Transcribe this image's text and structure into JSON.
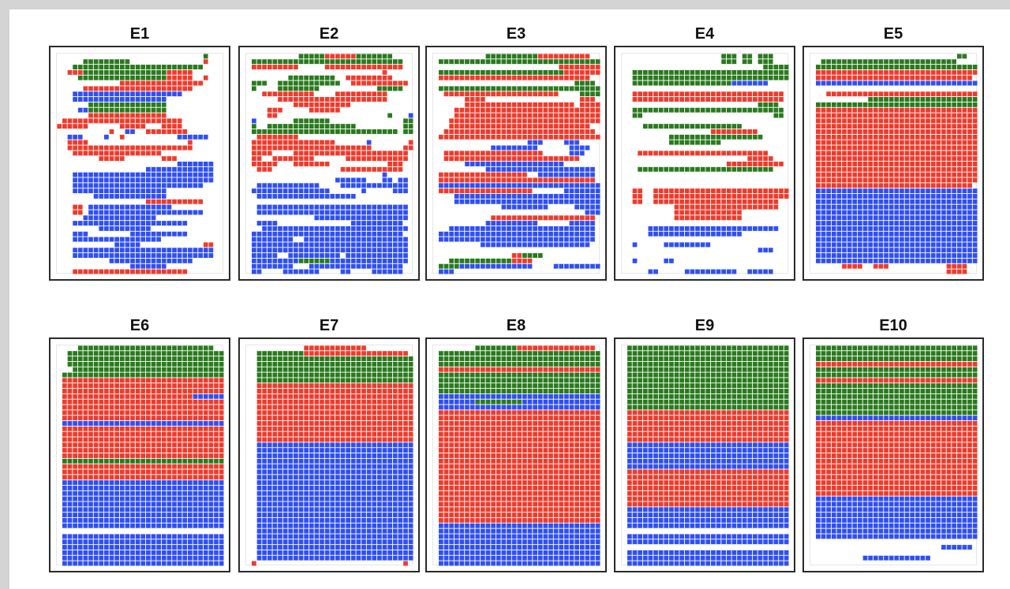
{
  "chart_data": {
    "type": "heatmap",
    "description_note": "",
    "legend": [],
    "colors": {
      "a": "#2a7a1e",
      "b": "#ef3b2c",
      "c": "#2f4ff5",
      "empty": "#ffffff"
    },
    "grid": {
      "cols": 32,
      "rows": 41
    },
    "panels": [
      {
        "title": "E1",
        "rows": [
          "............................A...",
          ".....AAAAAAAAA..............B...",
          "...AAAAAAAAAAAAAAAAAAAAAAAAA....",
          "..BBBAAAAAAAAAAAAAAAABBBBB......",
          "....AAAAAAAAAAAAAAAAABBBBB..B...",
          "............BBBBBBBBBBBBBBBB....",
          ".....BBBBBBBBBBBBBBBBBBBBB......",
          "...CCCCCCCCCCCCCCCCCCCCC........",
          "...CCCCCCCCCCCCCCCCCC...........",
          "......AAAAAAAAAAAAAAA...........",
          "....CCAAAAAAAAAAAAAAA...........",
          "......BBBBBBBBBBBBBBB...........",
          ".BBBBBBBBBBBBBBBBBBBBBBB........",
          "BBBBBB......BBBBB...BBBB........",
          "..........B..CC..BBBBBBBB.......",
          "..CCC....C..B..........CCCCCC...",
          "..BBBB...................B......",
          "..BBBBBBBBBBBBBBBBBBBBBBBB......",
          "...BBBBBBBBBBBBBBBBB............",
          "........BBBBB.......BBB.........",
          ".......................CCCCCCC..",
          ".................CCCCCCCCCCCCC..",
          "...CCCCCCCCCCCCCCCCCCCCCCCCCCC..",
          "...CCCCCCCCCCCCCCCCCCCCCCCCCCC..",
          "...CCCCCCCCCCCCCCCCCCCCCCCCC....",
          "...CCCCCCCCCCCCCCCCCC...........",
          ".......CCCCCCCCCCCCCC...........",
          ".................BBBBBBBBBBB....",
          "...BB.CCCCCCCCCCCCCCCC..........",
          "...BB.CCCCCCCCCCCCCCCCCCCCCC....",
          ".....CCCCCCCCCCCCCC.............",
          "...CCCCCCCCCCCCCCCCCCCCCC.......",
          "........CCCCCCCCCC..............",
          "...CCC........CCCCCCCCCCC.......",
          "...CCCCCCCCCCCCCCCCC............",
          "...........CCCCC............BB..",
          "...CCCCCCCCCCCCCCCCCCCCCCCCCCC..",
          "...CCCCCCCCCCCCCCCCCCCCCCCCCCC..",
          "..........CCCCCCCCCCCCCCCC......",
          "..............CCCCCCC...........",
          "...BBBBBBBBBBBBBBBBBBBBBB......."
        ]
      },
      {
        "title": "E2",
        "rows": [
          "..........AAAAABBBBBBAAAAAAA....",
          ".AAAAAAAAAAAAAAAAAAAAAAAAAAAAA..",
          ".BBBBBBBBB.....BBBBBBBBBBBBBBB..",
          "..........................B.....",
          "........AAAAAAAAA..BBBBBBBBB....",
          ".AAA..AAAAAAAAAAAA..BBBBBBBBBBB.",
          ".A....AAAAAAAA...........AAAAA..",
          "...BBBBBBBBBB....BBBBBBBBBB.....",
          "......BBBBBBBBBBBBBBBBBBBBB.....",
          ".........BBBBBBBBBBB............",
          "....BBB.....BBBBBB..............",
          "....BB.....................A...C",
          ".C.......AAAAAAA..............AA",
          ".A..AAAAAAAAAAAAAAAAA.........AA",
          ".AAAAAAAAAAAAAAAAAAAAAAAAAAAA.AA",
          "..BBBBBBBB......................",
          ".BBBBBBBBBBBBBBBB......C.......B",
          ".BBBBBBBBBBBBBBBBBBBBBBB......BB",
          ".BBBB....BBBBBBBBBBBBBBBBBBBBBB.",
          ".BB..BBBBBBBB......BBBBBBBBBBBB.",
          ".BBBBB...BBBBBBB...........BBB..",
          "..BBB.............BBBBBBBBBBBB..",
          "..........................C.....",
          ".................CCCCCC...CC.CC.",
          "..CCCCCCCCCCCC....CCCCCCCCCCCCC.",
          ".CCCCCCCCCCCCCCC......C.....CCC.",
          "..CCCCCCCCCCCCCCCCCCC...........",
          "................................",
          "..CCCCCCCCCCCCCCCCCCCCCCCCCCCCC.",
          "..CCCCCCCCCCCCCCCCCCCCCCCCCCCCC.",
          ".............CCCCCCCCCCCCCCCCCC.",
          "..CCCC..............CCCCCCCCCC..",
          "...CCCCCCCCCCCCCCCCCCCCCCCCCCCC.",
          ".CCCCCCCCCCCCCCCCCCCCCCCCCCCCC..",
          ".CCCCCCCC..CCCCCCCCCCCCCCCCCCCC.",
          ".CCCCCCCCCCCCCCCCCCCCCCCCCCCCCC.",
          ".CCCCCCCCCCCCCCCCCCCCCCCCCCCCCC.",
          ".CCCCC..CCCCCCCCCC.CCCCCCCCCCCC.",
          ".CCCCCCCCCAAAAAACCCCCCCCCCCCCCC.",
          ".CCCCCCCC...CCCCCCCCCCCCCCCCCC..",
          ".CC....CCCCCCC....CC....CCCCCC.."
        ]
      },
      {
        "title": "E3",
        "rows": [
          "..........AAAAAAAAAABBBBBBBBBB..",
          ".AAAAAAAAAAAAAAAAAAAAAAAAAAAAAAA",
          "........................BBBBBBBB",
          ".AAAAAAAAAAAAAAAAAAAAAAAABBBBBBB",
          ".BBBBBBBBBBBBBBBBBBBBBBBBBBBBB..",
          "...........................AAAA.",
          ".AAAAAAAAAAAAAAAAAAAAAAAAAAAAAAA",
          "..BBBBBBBBBBBBBBBBBBBBBB....AAAA",
          "......BBBB..................BBB.",
          "......BBBBBBBBBBBBBBBBBBBBB.BBBB",
          "....BBBBBBBBBBBBBBBBBBBBBBBBBBBB",
          "....BBBBBBBBBBBBBBBBBBBBBBBBBBBB",
          "...BBBBBBBBBBBBBBBBBBBBBBBBBBBBB",
          "...BBBBBBBBBBBBBBBBBBBBBBBBBBB..",
          "..BBBBBBBBBBBBBBBBBBBBBBBBBBBBB.",
          ".BBBBBBBBBBBBBBBBBBBBBBBBBBBBBBB",
          "..................CCC....CCC....",
          "...........CCCCCCCCC......CCCC..",
          "..BBBBBBBBBBBBBBBBBBB.....CCC...",
          "..BBBBBBBBBBBBBBBBBBBBBBBBBB....",
          "......CCCCCCCCCCCCCCCCCCC.......",
          "..........CCCCCCCCCCCCCCCCCCCCC.",
          ".BBBBBBBBBBBBBBBBB..CCCCCCCCCCC.",
          ".BBBBBBBBBBBBBBBBBBBBBBBBBBBBBB.",
          ".CCCCCCCCCCCCCCCCCCCCCCCCCCCCCCC",
          ".BBBBBBBBBBBBBBBBBB......CCCCCCC",
          "....CCCCCCCCCCCCCCCCCCCCCCCCCCCC",
          "....CCCCCCCCCCCCCCCCCCCCCCCCCCCC",
          ".............CCCCCCCCC.....CCCCC",
          ".............................CCC",
          "...........BBBBBBBBBBBBBBBBBBBB.",
          "..........CCCCCCCCCC......CCCCC.",
          "...CCCCCCCCCCCCCCCCCCCCCCCCCCCC.",
          ".CCCCCCCCCCCCCCCCCCCCCCCCCCCCCC.",
          ".CCCCCCCCCCCCCCCCCCCCCCCCCCCCCC.",
          ".........CCCCCCCCCCCCCCCCCCCCC..",
          "................................",
          "...............BBAAAA...........",
          "...AAAAAAAAAAAABBBB.............",
          ".AAAACCCCCCCCCCCCCC....CCCCCCCCC",
          ".CCC............................"
        ]
      },
      {
        "title": "E4",
        "rows": [
          "...................AAA.AA.AAA...",
          "...................AAA.AA.AAA...",
          "...........................AAAAA",
          "..AAAAAAAAAAAAAAAAAAAAAAAAAAAAAA",
          "..AAAAAAAAAAAAAAAAAAAAAAAAAAAAAA",
          "..AAAAAAAAAAAAAAAAAAACCCCCCC....",
          "................................",
          "..BBBBBBBBBBBBBBBBBBBBBBBBBBBBB.",
          "..BBBBBBBBBBBBBBBBBBBBBBBBBBBBB.",
          "..........................AAAA..",
          "..AAAAAAAAAAAAAAAAAAAAAAAAAAAAA.",
          "..AA.........................AA.",
          "................................",
          "....AAAAAAAAAAAAAAAAAAA.........",
          ".................BBBBBBBBB......",
          ".........AAAAAAAAAAAAAAAAAA.....",
          ".........AAAAAAAAAA.............",
          "................................",
          "...BBBBBBBBBBBBBBBBBBBBBBBBB....",
          "........................BBBBB...",
          "....................BBBBBBBBBBB.",
          "...AAAAAAAAAAAAAAAAAAAAAAAAAA...",
          "................................",
          "................................",
          "................................",
          "..BB..BBBBBBBBBBBBBBBBBBBBBBBBBB",
          "..BB..BBBBBBBBBBBBBBBBBBBBBBBBBB",
          "..BB..BBBBBBBBBBBBBBBBBBBBBBBB..",
          "..........BBBBBBBBBBBBBBBBBBBB..",
          "..........BBBBBBBBBBBBB.........",
          "..........BBBBBBBBBBBBB.........",
          "................................",
          ".....CCCCCCCCCCCCCCCCCCCCCCCCC..",
          ".....CCCCCCCCCCCCCCCCCC.........",
          "................................",
          "..C.....CCCCCCCCC...............",
          "..........................CCC...",
          "................................",
          "..C.....CC......................",
          "................................",
          ".....CC.....CCCCCCCCCC..CCCCC..."
        ]
      },
      {
        "title": "E5",
        "rows": [
          "............................AA..",
          "..AAAAAAAAAAAAAAAAAAAAAAAAAA....",
          ".AAAAAAAAAAAAAAAAAAAAAAAAAAAAAAA",
          ".BBBBBBBBBBBBBBBBBBBBBBBBBBBBBBB",
          ".BBBBBBBBBBBBBBBBBBBBBBBBBBBBBB.",
          ".CCCCCCCCCCCCCCCCCCCCCCCCCCCCCCC",
          "................................",
          "...BBBBBBBBBBBBBBBBBBBBBBBBBBBBB",
          "...........AAAAAAAAAAAAAAAAAAAAA",
          ".AAAAAAAAAAAAAAAAAAAAAAAAAAAAAAA",
          ".BBBBBBBBBBBBBBBBBBBBBBBBBBBBBBB",
          ".BBBBBBBBBBBBBBBBBBBBBBBBBBBBBBB",
          ".BBBBBBBBBBBBBBBBBBBBBBBBBBBBBBB",
          ".BBBBBBBBBBBBBBBBBBBBBBBBBBBBBBB",
          ".BBBBBBBBBBBBBBBBBBBBBBBBBBBBBBB",
          ".BBBBBBBBBBBBBBBBBBBBBBBBBBBBBBB",
          ".BBBBBBBBBBBBBBBBBBBBBBBBBBBBBBB",
          ".BBBBBBBBBBBBBBBBBBBBBBBBBBBBBBB",
          ".BBBBBBBBBBBBBBBBBBBBBBBBBBBBBBB",
          ".BBBBBBBBBBBBBBBBBBBBBBBBBBBBBBB",
          ".BBBBBBBBBBBBBBBBBBBBBBBBBBBBBBB",
          ".BBBBBBBBBBBBBBBBBBBBBBBBBBBBBBB",
          ".BBBBBBBBBBBBBBBBBBBBBBBBBBBBBBB",
          ".BBBBBBBBBBBBBBBBBBBBBBBBBBBBBBB",
          ".BBBBBBBBBBBBBBBBBBBBBBBBBBBBBB.",
          ".CCCCCCCCCCCCCCCCCCCCCCCCCCCCCCC",
          ".CCCCCCCCCCCCCCCCCCCCCCCCCCCCCCC",
          ".CCCCCCCCCCCCCCCCCCCCCCCCCCCCCCC",
          ".CCCCCCCCCCCCCCCCCCCCCCCCCCCCCCC",
          ".CCCCCCCCCCCCCCCCCCCCCCCCCCCCCCC",
          ".CCCCCCCCCCCCCCCCCCCCCCCCCCCCCCC",
          ".CCCCCCCCCCCCCCCCCCCCCCCCCCCCCCC",
          ".CCCCCCCCCCCCCCCCCCCCCCCCCCCCCCC",
          ".CCCCCCCCCCCCCCCCCCCCCCCCCCCCCCC",
          ".CCCCCCCCCCCCCCCCCCCCCCCCCCCCCCC",
          ".CCCCCCCCCCCCCCCCCCCCCCCCCCCCCCC",
          ".CCCCCCCCCCCCCCCCCCCCCCCCCCCCCCC",
          ".CCCCCCCCCCCCCCCCCCCCCCCCCCCCCCC",
          ".CCCCCCCCCCCCCCCCCCCCCCCCCCCCCCC",
          "......BBBB..BBB...........BBBB..",
          "..........................BBBB.."
        ]
      },
      {
        "title": "E6",
        "rows": [
          "....AAAAAAAAAAAAAAAAAAAAAAAAAA..",
          "..AAAAAAAAAAAAAAAAAAAAAAAAAAAAAA",
          "..AAAAAAAAAAAAAAAAAAAAAAAAAAAAAA",
          "..AAAAAAAAAAAAAAAAAAAAAAAAAAAAAA",
          "...AAAAAAAAAAAAAAAAAAAAAAAAAAAAA",
          ".AAAAAAAAAAAAAAAAAAAAAAAAAAAAAAA",
          ".BBBBBBBBBBBBBBBBBBBBBBBBBBBBBBB",
          ".BBBBBBBBBBBBBBBBBBBBBBBBBBBBBBB",
          ".BBBBBBBBBBBBBBBBBBBBBBBBBBBBBBB",
          ".BBBBBBBBBBBBBBBBBBBBBBBBBCCCCCC",
          ".BBBBBBBBBBBBBBBBBBBBBBBBBBBBBBB",
          ".BBBBBBBBBBBBBBBBBBBBBBBBBBBBBBB",
          ".BBBBBBBBBBBBBBBBBBBBBBBBBBBBBBB",
          ".BBBBBBBBBBBBBBBBBBBBBBBBBBBBBBB",
          ".CCCCCCCCCCCCCCCCCCCCCCCCCCCCCCC",
          ".BBBBBBBBBBBBBBBBBBBBBBBBBBBBBBB",
          ".BBBBBBBBBBBBBBBBBBBBBBBBBBBBBBB",
          ".BBBBBBBBBBBBBBBBBBBBBBBBBBBBBBB",
          ".BBBBBBBBBBBBBBBBBBBBBBBBBBBBBBB",
          ".BBBBBBBBBBBBBBBBBBBBBBBBBBBBBBB",
          ".BBBBBBBBBBBBBBBBBBBBBBBBBBBBBBB",
          ".AAAAAAAAAAAAAAAAAAAAAAAAAAAAAAA",
          ".BBBBBBBBBBBBBBBBBBBBBBBBBBBBBBB",
          ".BBBBBBBBBBBBBBBBBBBBBBBBBBBBBBB",
          ".BBBBBBBBBBBBBBBBBBBBBBBBBBBBBBB",
          ".CCCCCCCCCCCCCCCCCCCCCCCCCCCCCCC",
          ".CCCCCCCCCCCCCCCCCCCCCCCCCCCCCCC",
          ".CCCCCCCCCCCCCCCCCCCCCCCCCCCCCCC",
          ".CCCCCCCCCCCCCCCCCCCCCCCCCCCCCCC",
          ".CCCCCCCCCCCCCCCCCCCCCCCCCCCCCCC",
          ".CCCCCCCCCCCCCCCCCCCCCCCCCCCCCCC",
          ".CCCCCCCCCCCCCCCCCCCCCCCCCCCCCCC",
          ".CCCCCCCCCCCCCCCCCCCCCCCCCCCCCCC",
          ".CCCCCCCCCCCCCCCCCCCCCCCCCCCCCCC",
          "................................",
          ".CCCCCCCCCCCCCCCCCCCCCCCCCCCCCCC",
          ".CCCCCCCCCCCCCCCCCCCCCCCCCCCCCCC",
          ".CCCCCCCCCCCCCCCCCCCCCCCCCCCCCCC",
          ".CCCCCCCCCCCCCCCCCCCCCCCCCCCCCCC",
          ".CCCCCCCCCCCCCCCCCCCCCCCCCCCCCCC",
          ".CCCCCCCCCCCCCCCCCCCCCCCCCCCCCCC"
        ]
      },
      {
        "title": "E7",
        "rows": [
          "...........BBBBBBBBBBBB.........",
          "..AAAAAAAAABBBBBBBBBBBBBBBBBBBB.",
          "..AAAAAAAAAAAAAAAAAAAAAAAAAAAAAA",
          "..AAAAAAAAAAAAAAAAAAAAAAAAAAAAAA",
          "..AAAAAAAAAAAAAAAAAAAAAAAAAAAAAA",
          "..AAAAAAAAAAAAAAAAAAAAAAAAAAAAAA",
          "..AAAAAAAAAAAAAAAAAAAAAAAAAAAAAA",
          "..BBBBBBBBBBBBBBBBBBBBBBBBBBBBBB",
          "..BBBBBBBBBBBBBBBBBBBBBBBBBBBBBB",
          "..BBBBBBBBBBBBBBBBBBBBBBBBBBBBBB",
          "..BBBBBBBBBBBBBBBBBBBBBBBBBBBBBB",
          "..BBBBBBBBBBBBBBBBBBBBBBBBBBBBBB",
          "..BBBBBBBBBBBBBBBBBBBBBBBBBBBBBB",
          "..BBBBBBBBBBBBBBBBBBBBBBBBBBBBBB",
          "..BBBBBBBBBBBBBBBBBBBBBBBBBBBBBB",
          "..BBBBBBBBBBBBBBBBBBBBBBBBBBBBBB",
          "..BBBBBBBBBBBBBBBBBBBBBBBBBBBBBB",
          "..BBBBBBBBBBBBBBBBBBBBBBBBBBBBBB",
          "..CCCCCCCCCCCCCCCCCCCCCCCCCCCCCC",
          "..CCCCCCCCCCCCCCCCCCCCCCCCCCCCCC",
          "..CCCCCCCCCCCCCCCCCCCCCCCCCCCCCC",
          "..CCCCCCCCCCCCCCCCCCCCCCCCCCCCCC",
          "..CCCCCCCCCCCCCCCCCCCCCCCCCCCCCC",
          "..CCCCCCCCCCCCCCCCCCCCCCCCCCCCCC",
          "..CCCCCCCCCCCCCCCCCCCCCCCCCCCCCC",
          "..CCCCCCCCCCCCCCCCCCCCCCCCCCCCCC",
          "..CCCCCCCCCCCCCCCCCCCCCCCCCCCCCC",
          "..CCCCCCCCCCCCCCCCCCCCCCCCCCCCCC",
          "..CCCCCCCCCCCCCCCCCCCCCCCCCCCCCC",
          "..CCCCCCCCCCCCCCCCCCCCCCCCCCCCCC",
          "..CCCCCCCCCCCCCCCCCCCCCCCCCCCCCC",
          "..CCCCCCCCCCCCCCCCCCCCCCCCCCCCCC",
          "..CCCCCCCCCCCCCCCCCCCCCCCCCCCCCC",
          "..CCCCCCCCCCCCCCCCCCCCCCCCCCCCCC",
          "..CCCCCCCCCCCCCCCCCCCCCCCCCCCCCC",
          "..CCCCCCCCCCCCCCCCCCCCCCCCCCCCCC",
          "..CCCCCCCCCCCCCCCCCCCCCCCCCCCCCC",
          "..CCCCCCCCCCCCCCCCCCCCCCCCCCCCCC",
          "..CCCCCCCCCCCCCCCCCCCCCCCCCCCCCC",
          "..CCCCCCCCCCCCCCCCCCCCCCCCCCCCCC",
          ".B............................B."
        ]
      },
      {
        "title": "E8",
        "rows": [
          "........AAAAAAAABBBBBBBBBBBBBBB.",
          ".AAAAAAAAAAAAAAAAAAAAAAAAAAAAAAA",
          ".AAAAAAAAAAAAAAAAAAAAAAAAAAAAAAA",
          ".AAAAAAAAAAAAAAAAAAAAAAAAAAAAAAA",
          ".BBBBBBBBBBBBBBBBBBBBBBBBBBBBBBB",
          ".AAAAAAAAAAAAAAAAAAAAAAAAAAAAAAA",
          ".AAAAAAAAAAAAAAAAAAAAAAAAAAAAAAA",
          ".AAAAAAAAAAAAAAAAAAAAAAAAAAAAAAA",
          ".AAAAAAAAAAAAAAAAAAAAAAAAAAAAAAA",
          ".CCCCCCCCCCCCCCCCCCCCCCCCCCCCCCC",
          ".CCCCCCCAAAAAAAAACCCCCCCCCCCCCCC",
          ".CCCCCCCCCCCCCCCCCCCCCCCCCCCCCCC",
          ".BBBBBBBBBBBBBBBBBBBBBBBBBBBBBBB",
          ".BBBBBBBBBBBBBBBBBBBBBBBBBBBBBBB",
          ".BBBBBBBBBBBBBBBBBBBBBBBBBBBBBBB",
          ".BBBBBBBBBBBBBBBBBBBBBBBBBBBBBBB",
          ".BBBBBBBBBBBBBBBBBBBBBBBBBBBBBBB",
          ".BBBBBBBBBBBBBBBBBBBBBBBBBBBBBBB",
          ".BBBBBBBBBBBBBBBBBBBBBBBBBBBBBBB",
          ".BBBBBBBBBBBBBBBBBBBBBBBBBBBBBBB",
          ".BBBBBBBBBBBBBBBBBBBBBBBBBBBBBBB",
          ".BBBBBBBBBBBBBBBBBBBBBBBBBBBBBBB",
          ".BBBBBBBBBBBBBBBBBBBBBBBBBBBBBBB",
          ".BBBBBBBBBBBBBBBBBBBBBBBBBBBBBBB",
          ".BBBBBBBBBBBBBBBBBBBBBBBBBBBBBBB",
          ".BBBBBBBBBBBBBBBBBBBBBBBBBBBBBBB",
          ".BBBBBBBBBBBBBBBBBBBBBBBBBBBBBBB",
          ".BBBBBBBBBBBBBBBBBBBBBBBBBBBBBBB",
          ".BBBBBBBBBBBBBBBBBBBBBBBBBBBBBBB",
          ".BBBBBBBBBBBBBBBBBBBBBBBBBBBBBBB",
          ".BBBBBBBBBBBBBBBBBBBBBBBBBBBBBBB",
          ".BBBBBBBBBBBBBBBBBBBBBBBBBBBBBBB",
          ".BBBBBBBBBBBBBBBBBBBBBBBBBBBBBBB",
          ".CCCCCCCCCCCCCCCCCCCCCCCCCCCCCCC",
          ".CCCCCCCCCCCCCCCCCCCCCCCCCCCCCCC",
          ".CCCCCCCCCCCCCCCCCCCCCCCCCCCCCCC",
          ".CCCCCCCCCCCCCCCCCCCCCCCCCCCCCCC",
          ".CCCCCCCCCCCCCCCCCCCCCCCCCCCCCCC",
          ".CCCCCCCCCCCCCCCCCCCCCCCCCCCCCCC",
          ".CCCCCCCCCCCCCCCCCCCCCCCCCCCCCCC",
          ".CCCCCCCCCCCCCCCCCCCCCCCCCCCCCCC"
        ]
      },
      {
        "title": "E9",
        "rows": [
          ".AAAAAAAAAAAAAAAAAAAAAAAAAAAAAAA",
          ".AAAAAAAAAAAAAAAAAAAAAAAAAAAAAAA",
          ".AAAAAAAAAAAAAAAAAAAAAAAAAAAAAAA",
          ".AAAAAAAAAAAAAAAAAAAAAAAAAAAAAAA",
          ".AAAAAAAAAAAAAAAAAAAAAAAAAAAAAAA",
          ".AAAAAAAAAAAAAAAAAAAAAAAAAAAAAAA",
          ".AAAAAAAAAAAAAAAAAAAAAAAAAAAAAAA",
          ".AAAAAAAAAAAAAAAAAAAAAAAAAAAAAAA",
          ".AAAAAAAAAAAAAAAAAAAAAAAAAAAAAAA",
          ".AAAAAAAAAAAAAAAAAAAAAAAAAAAAAAA",
          ".AAAAAAAAAAAAAAAAAAAAAAAAAAAAAAA",
          ".AAAAAAAAAAAAAAAAAAAAAAAAAAAAAAA",
          ".BBBBBBBBBBBBBBBBBBBBBBBBBBBBBBB",
          ".BBBBBBBBBBBBBBBBBBBBBBBBBBBBBBB",
          ".BBBBBBBBBBBBBBBBBBBBBBBBBBBBBBB",
          ".BBBBBBBBBBBBBBBBBBBBBBBBBBBBBBB",
          ".BBBBBBBBBBBBBBBBBBBBBBBBBBBBBBB",
          ".BBBBBBBBBBBBBBBBBBBBBBBBBBBBBBB",
          ".CCCCCCCCCCCCCCCCCCCCCCCCCCCCCCC",
          ".CCCCCCCCCCCCCCCCCCCCCCCCCCCCCCC",
          ".CCCCCCCCCCCCCCCCCCCCCCCCCCCCCCC",
          ".CCCCCCCCCCCCCCCCCCCCCCCCCCCCCCC",
          ".CCCCCCCCCCCCCCCCCCCCCCCCCCCCCCC",
          ".BBBBBBBBBBBBBBBBBBBBBBBBBBBBBBB",
          ".BBBBBBBBBBBBBBBBBBBBBBBBBBBBBBB",
          ".BBBBBBBBBBBBBBBBBBBBBBBBBBBBBBB",
          ".BBBBBBBBBBBBBBBBBBBBBBBBBBBBBBB",
          ".BBBBBBBBBBBBBBBBBBBBBBBBBBBBBBB",
          ".BBBBBBBBBBBBBBBBBBBBBBBBBBBBBBB",
          ".BBBBBBBBBBBBBBBBBBBBBBBBBBBBBBB",
          ".CCCCCCCCCCCCCCCCCCCCCCCCCCCCCCC",
          ".CCCCCCCCCCCCCCCCCCCCCCCCCCCCCCC",
          ".CCCCCCCCCCCCCCCCCCCCCCCCCCCCCCC",
          ".CCCCCCCCCCCCCCCCCCCCCCCCCCCCCCC",
          "................................",
          ".CCCCCCCCCCCCCCCCCCCCCCCCCCCCCCC",
          ".CCCCCCCCCCCCCCCCCCCCCCCCCCCCCCC",
          "................................",
          ".CCCCCCCCCCCCCCCCCCCCCCCCCCCCCCC",
          ".CCCCCCCCCCCCCCCCCCCCCCCCCCCCCCC",
          ".CCCCCCCCCCCCCCCCCCCCCCCCCCCCCCC"
        ]
      },
      {
        "title": "E10",
        "rows": [
          ".AAAAAAAAAAAAAAAAAAAAAAAAAAAAAAA",
          ".AAAAAAAAAAAAAAAAAAAAAAAAAAAAAAA",
          ".AAAAAAAAAAAAAAAAAAAAAAAAAAAAAAA",
          ".BBBBBBBBBBBBBBBBBBBBBBBBBBBBBBB",
          ".AAAAAAAAAAAAAAAAAAAAAAAAAAAAAAA",
          ".AAAAAAAAAAAAAAAAAAAAAAAAAAAAAAA",
          ".BBBBBBBBBBBBBBBBBBBBBBBBBBBBBBB",
          ".AAAAAAAAAAAAAAAAAAAAAAAAAAAAAAA",
          ".AAAAAAAAAAAAAAAAAAAAAAAAAAAAAAA",
          ".AAAAAAAAAAAAAAAAAAAAAAAAAAAAAAA",
          ".AAAAAAAAAAAAAAAAAAAAAAAAAAAAAAA",
          ".AAAAAAAAAAAAAAAAAAAAAAAAAAAAAAA",
          ".AAAAAAAAAAAAAAAAAAAAAAAAAAAAAAA",
          ".CCCCCCCCCCCCCCCCCCCCCCCCCCCCCCC",
          ".BBBBBBBBBBBBBBBBBBBBBBBBBBBBBBB",
          ".BBBBBBBBBBBBBBBBBBBBBBBBBBBBBBB",
          ".BBBBBBBBBBBBBBBBBBBBBBBBBBBBBBB",
          ".BBBBBBBBBBBBBBBBBBBBBBBBBBBBBBB",
          ".BBBBBBBBBBBBBBBBBBBBBBBBBBBBBBB",
          ".BBBBBBBBBBBBBBBBBBBBBBBBBBBBBBB",
          ".BBBBBBBBBBBBBBBBBBBBBBBBBBBBBBB",
          ".BBBBBBBBBBBBBBBBBBBBBBBBBBBBBBB",
          ".BBBBBBBBBBBBBBBBBBBBBBBBBBBBBBB",
          ".BBBBBBBBBBBBBBBBBBBBBBBBBBBBBBB",
          ".BBBBBBBBBBBBBBBBBBBBBBBBBBBBBBB",
          ".BBBBBBBBBBBBBBBBBBBBBBBBBBBBBBB",
          ".BBBBBBBBBBBBBBBBBBBBBBBBBBBBBBB",
          ".BBBBBBBBBBBBBBBBBBBBBBBBBBBBBBB",
          ".CCCCCCCCCCCCCCCCCCCCCCCCCCCCCCC",
          ".CCCCCCCCCCCCCCCCCCCCCCCCCCCCCCC",
          ".CCCCCCCCCCCCCCCCCCCCCCCCCCCCCCC",
          ".CCCCCCCCCCCCCCCCCCCCCCCCCCCCCCC",
          ".CCCCCCCCCCCCCCCCCCCCCCCCCCCCCCC",
          ".CCCCCCCCCCCCCCCCCCCCCCCCCCCCCCC",
          ".CCCCCCCCCCCCCCCCCCCCCCCCCCCCCCC",
          ".CCCCCCCCCCCCCCCCCCCCCCCCCCCCCCC",
          "................................",
          ".........................CCCCCC.",
          "................................",
          "..........CCCCCCCCCCCCC.........",
          "................................"
        ]
      }
    ]
  }
}
